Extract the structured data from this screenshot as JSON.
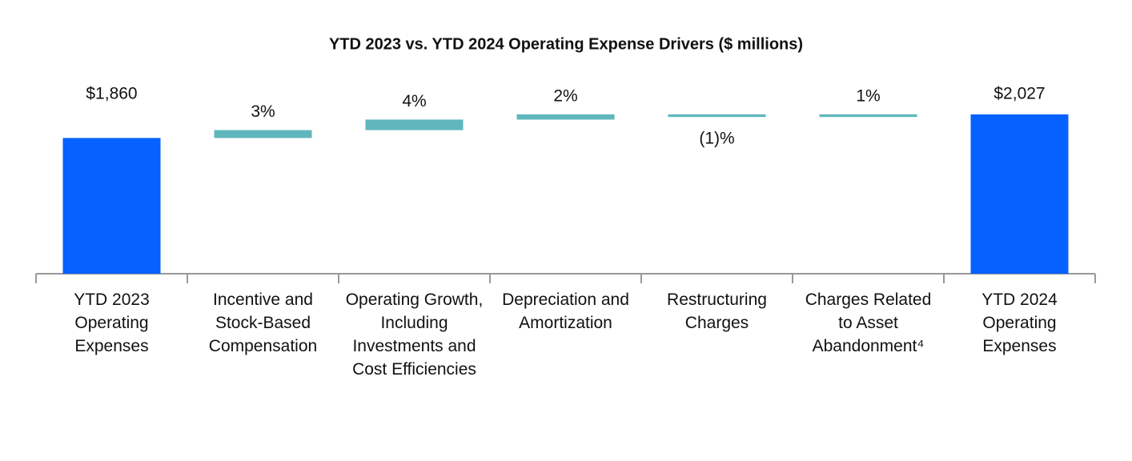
{
  "chart_data": {
    "type": "waterfall",
    "title": "YTD 2023 vs. YTD 2024 Operating Expense Drivers ($ millions)",
    "categories": [
      "YTD 2023 Operating Expenses",
      "Incentive and Stock-Based Compensation",
      "Operating Growth, Including Investments and Cost Efficiencies",
      "Depreciation and Amortization",
      "Restructuring Charges",
      "Charges Related to Asset Abandonment⁴",
      "YTD 2024 Operating Expenses"
    ],
    "measures": [
      "total",
      "relative",
      "relative",
      "relative",
      "relative",
      "relative",
      "total"
    ],
    "values": [
      1860,
      3,
      4,
      2,
      -1,
      1,
      2027
    ],
    "value_labels": [
      "$1,860",
      "3%",
      "4%",
      "2%",
      "(1)%",
      "1%",
      "$2,027"
    ],
    "total_color": "#0561ff",
    "change_color": "#5fb7bd",
    "ylim": [
      900,
      2270
    ]
  }
}
